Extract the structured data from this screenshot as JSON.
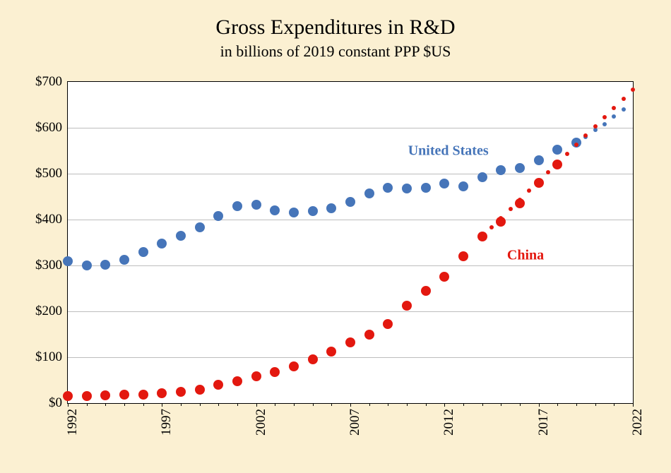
{
  "title": "Gross Expenditures in R&D",
  "subtitle": "in billions of 2019 constant PPP $US",
  "chart": {
    "type": "scatter",
    "background_color": "#ffffff",
    "page_background": "#fbf0d2",
    "grid_color": "#bdbdbd",
    "border_color": "#000000",
    "xlim": [
      1992,
      2022
    ],
    "ylim": [
      0,
      700
    ],
    "ytick_step": 100,
    "yticks": [
      0,
      100,
      200,
      300,
      400,
      500,
      600,
      700
    ],
    "ytick_labels": [
      "$0",
      "$100",
      "$200",
      "$300",
      "$400",
      "$500",
      "$600",
      "$700"
    ],
    "xticks_major": [
      1992,
      1997,
      2002,
      2007,
      2012,
      2017,
      2022
    ],
    "xtick_labels": [
      "1992",
      "1997",
      "2002",
      "2007",
      "2012",
      "2017",
      "2022"
    ],
    "title_fontsize": 30,
    "subtitle_fontsize": 22,
    "axis_label_fontsize": 19,
    "series_label_fontsize": 20,
    "series": [
      {
        "name": "United States",
        "label": "United States",
        "color": "#4675b9",
        "marker_radius": 7,
        "projection_radius": 3,
        "label_pos": {
          "x": 2012.2,
          "y": 550
        },
        "data": [
          {
            "x": 1992,
            "y": 310
          },
          {
            "x": 1993,
            "y": 300
          },
          {
            "x": 1994,
            "y": 302
          },
          {
            "x": 1995,
            "y": 313
          },
          {
            "x": 1996,
            "y": 330
          },
          {
            "x": 1997,
            "y": 347
          },
          {
            "x": 1998,
            "y": 365
          },
          {
            "x": 1999,
            "y": 383
          },
          {
            "x": 2000,
            "y": 408
          },
          {
            "x": 2001,
            "y": 430
          },
          {
            "x": 2002,
            "y": 432
          },
          {
            "x": 2003,
            "y": 420
          },
          {
            "x": 2004,
            "y": 415
          },
          {
            "x": 2005,
            "y": 418
          },
          {
            "x": 2006,
            "y": 425
          },
          {
            "x": 2007,
            "y": 438
          },
          {
            "x": 2008,
            "y": 457
          },
          {
            "x": 2009,
            "y": 470
          },
          {
            "x": 2010,
            "y": 468
          },
          {
            "x": 2011,
            "y": 470
          },
          {
            "x": 2012,
            "y": 478
          },
          {
            "x": 2013,
            "y": 473
          },
          {
            "x": 2014,
            "y": 493
          },
          {
            "x": 2015,
            "y": 508
          },
          {
            "x": 2016,
            "y": 513
          },
          {
            "x": 2017,
            "y": 530
          },
          {
            "x": 2018,
            "y": 553
          },
          {
            "x": 2019,
            "y": 568
          }
        ],
        "projection": [
          {
            "x": 2019,
            "y": 568
          },
          {
            "x": 2019.5,
            "y": 580
          },
          {
            "x": 2020,
            "y": 595
          },
          {
            "x": 2020.5,
            "y": 608
          },
          {
            "x": 2021,
            "y": 625
          },
          {
            "x": 2021.5,
            "y": 640
          }
        ]
      },
      {
        "name": "China",
        "label": "China",
        "color": "#e3180f",
        "marker_radius": 7,
        "projection_radius": 3,
        "label_pos": {
          "x": 2016.3,
          "y": 322
        },
        "data": [
          {
            "x": 1992,
            "y": 15
          },
          {
            "x": 1993,
            "y": 16
          },
          {
            "x": 1994,
            "y": 17
          },
          {
            "x": 1995,
            "y": 18
          },
          {
            "x": 1996,
            "y": 19
          },
          {
            "x": 1997,
            "y": 22
          },
          {
            "x": 1998,
            "y": 25
          },
          {
            "x": 1999,
            "y": 30
          },
          {
            "x": 2000,
            "y": 40
          },
          {
            "x": 2001,
            "y": 48
          },
          {
            "x": 2002,
            "y": 58
          },
          {
            "x": 2003,
            "y": 68
          },
          {
            "x": 2004,
            "y": 80
          },
          {
            "x": 2005,
            "y": 95
          },
          {
            "x": 2006,
            "y": 112
          },
          {
            "x": 2007,
            "y": 133
          },
          {
            "x": 2008,
            "y": 150
          },
          {
            "x": 2009,
            "y": 173
          },
          {
            "x": 2010,
            "y": 213
          },
          {
            "x": 2011,
            "y": 245
          },
          {
            "x": 2012,
            "y": 275
          },
          {
            "x": 2013,
            "y": 320
          },
          {
            "x": 2014,
            "y": 363
          },
          {
            "x": 2015,
            "y": 395
          },
          {
            "x": 2016,
            "y": 435
          },
          {
            "x": 2017,
            "y": 480
          },
          {
            "x": 2018,
            "y": 520
          }
        ],
        "projection": [
          {
            "x": 2014,
            "y": 363
          },
          {
            "x": 2014.5,
            "y": 383
          },
          {
            "x": 2015,
            "y": 403
          },
          {
            "x": 2015.5,
            "y": 423
          },
          {
            "x": 2016,
            "y": 443
          },
          {
            "x": 2016.5,
            "y": 463
          },
          {
            "x": 2017,
            "y": 483
          },
          {
            "x": 2017.5,
            "y": 503
          },
          {
            "x": 2018,
            "y": 523
          },
          {
            "x": 2018.5,
            "y": 543
          },
          {
            "x": 2019,
            "y": 563
          },
          {
            "x": 2019.5,
            "y": 583
          },
          {
            "x": 2020,
            "y": 603
          },
          {
            "x": 2020.5,
            "y": 623
          },
          {
            "x": 2021,
            "y": 643
          },
          {
            "x": 2021.5,
            "y": 663
          },
          {
            "x": 2022,
            "y": 683
          }
        ]
      }
    ]
  }
}
